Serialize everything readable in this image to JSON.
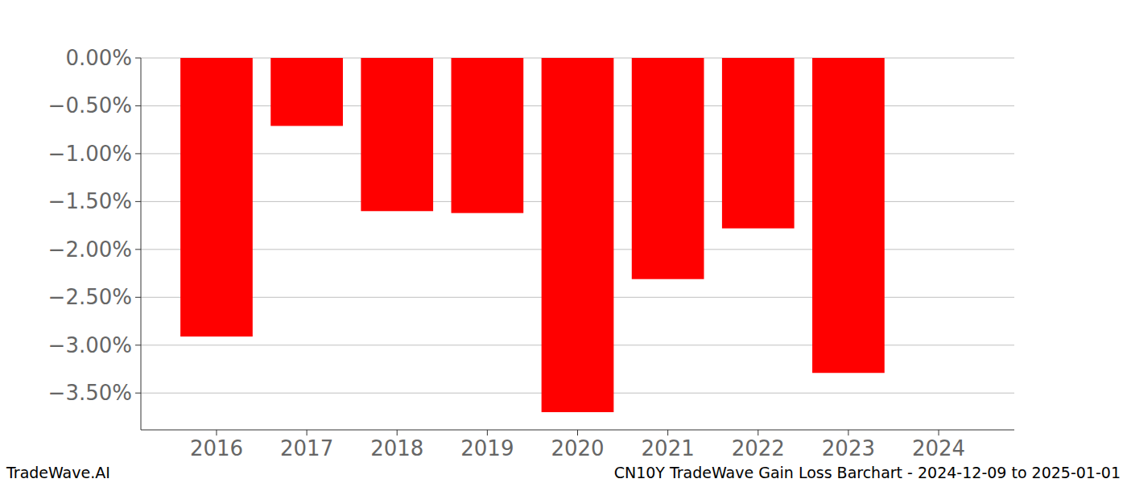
{
  "chart_data": {
    "type": "bar",
    "title": "CN10Y TradeWave Gain Loss Barchart - 2024-12-09 to 2025-01-01",
    "source": "TradeWave.AI",
    "categories": [
      "2016",
      "2017",
      "2018",
      "2019",
      "2020",
      "2021",
      "2022",
      "2023",
      "2024"
    ],
    "values": [
      -2.91,
      -0.71,
      -1.6,
      -1.62,
      -3.7,
      -2.31,
      -1.78,
      -3.29,
      null
    ],
    "color": "#ff0000",
    "ylim": [
      -3.885,
      0
    ],
    "yticks": [
      {
        "value": 0,
        "label": "0.00%"
      },
      {
        "value": -0.5,
        "label": "−0.50%"
      },
      {
        "value": -1.0,
        "label": "−1.00%"
      },
      {
        "value": -1.5,
        "label": "−1.50%"
      },
      {
        "value": -2.0,
        "label": "−2.00%"
      },
      {
        "value": -2.5,
        "label": "−2.50%"
      },
      {
        "value": -3.0,
        "label": "−3.00%"
      },
      {
        "value": -3.5,
        "label": "−3.50%"
      }
    ],
    "grid": true
  }
}
